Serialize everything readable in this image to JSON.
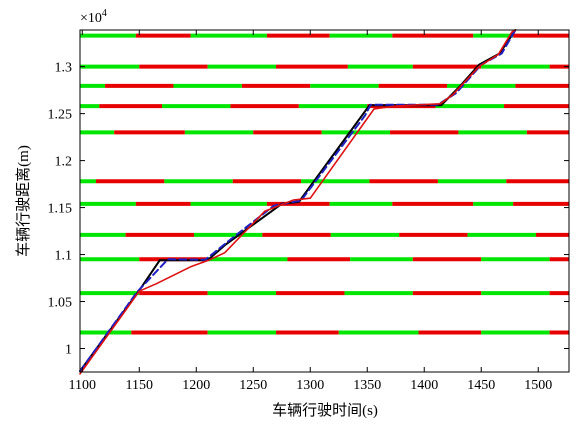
{
  "chart_data": {
    "type": "line",
    "title": "",
    "xlabel": "车辆行驶时间(s)",
    "ylabel": "车辆行驶距离(m)",
    "y_multiplier": "×10",
    "y_multiplier_exp": "4",
    "xlim": [
      1098,
      1527
    ],
    "ylim": [
      9750,
      13390
    ],
    "x_ticks": [
      1100,
      1150,
      1200,
      1250,
      1300,
      1350,
      1400,
      1450,
      1500
    ],
    "x_tick_labels": [
      "1100",
      "1150",
      "1200",
      "1250",
      "1300",
      "1350",
      "1400",
      "1450",
      "1500"
    ],
    "y_ticks": [
      10000,
      10500,
      11000,
      11500,
      12000,
      12500,
      13000
    ],
    "y_tick_labels": [
      "1",
      "1.05",
      "1.1",
      "1.15",
      "1.2",
      "1.25",
      "1.3"
    ],
    "grid": false,
    "legend": "none",
    "colors": {
      "green_phase": "#00e600",
      "red_phase": "#e60000",
      "black_traj": "#000000",
      "blue_traj": "#1f1fbf",
      "red_traj": "#dd1111"
    },
    "signals": [
      {
        "y": 13330,
        "segments": [
          [
            1098,
            1147,
            "g"
          ],
          [
            1147,
            1195,
            "r"
          ],
          [
            1195,
            1262,
            "g"
          ],
          [
            1262,
            1317,
            "r"
          ],
          [
            1317,
            1372,
            "g"
          ],
          [
            1372,
            1443,
            "r"
          ],
          [
            1443,
            1478,
            "g"
          ],
          [
            1478,
            1532,
            "r"
          ],
          [
            1532,
            1527,
            "g"
          ]
        ]
      },
      {
        "y": 13000,
        "segments": [
          [
            1098,
            1150,
            "g"
          ],
          [
            1150,
            1210,
            "r"
          ],
          [
            1210,
            1270,
            "g"
          ],
          [
            1270,
            1333,
            "r"
          ],
          [
            1333,
            1390,
            "g"
          ],
          [
            1390,
            1450,
            "r"
          ],
          [
            1450,
            1510,
            "g"
          ],
          [
            1510,
            1527,
            "r"
          ]
        ]
      },
      {
        "y": 12795,
        "segments": [
          [
            1098,
            1120,
            "g"
          ],
          [
            1120,
            1180,
            "r"
          ],
          [
            1180,
            1240,
            "g"
          ],
          [
            1240,
            1300,
            "r"
          ],
          [
            1300,
            1360,
            "g"
          ],
          [
            1360,
            1420,
            "r"
          ],
          [
            1420,
            1480,
            "g"
          ],
          [
            1480,
            1527,
            "r"
          ]
        ]
      },
      {
        "y": 12580,
        "segments": [
          [
            1098,
            1115,
            "g"
          ],
          [
            1115,
            1170,
            "r"
          ],
          [
            1170,
            1230,
            "g"
          ],
          [
            1230,
            1290,
            "r"
          ],
          [
            1290,
            1350,
            "g"
          ],
          [
            1350,
            1410,
            "r"
          ],
          [
            1410,
            1470,
            "g"
          ],
          [
            1470,
            1527,
            "r"
          ]
        ]
      },
      {
        "y": 12300,
        "segments": [
          [
            1098,
            1128,
            "g"
          ],
          [
            1128,
            1190,
            "r"
          ],
          [
            1190,
            1250,
            "g"
          ],
          [
            1250,
            1310,
            "r"
          ],
          [
            1310,
            1370,
            "g"
          ],
          [
            1370,
            1430,
            "r"
          ],
          [
            1430,
            1490,
            "g"
          ],
          [
            1490,
            1527,
            "r"
          ]
        ]
      },
      {
        "y": 11780,
        "segments": [
          [
            1098,
            1112,
            "g"
          ],
          [
            1112,
            1172,
            "r"
          ],
          [
            1172,
            1232,
            "g"
          ],
          [
            1232,
            1292,
            "r"
          ],
          [
            1292,
            1352,
            "g"
          ],
          [
            1352,
            1412,
            "r"
          ],
          [
            1412,
            1472,
            "g"
          ],
          [
            1472,
            1527,
            "r"
          ]
        ]
      },
      {
        "y": 11540,
        "segments": [
          [
            1098,
            1147,
            "g"
          ],
          [
            1147,
            1195,
            "r"
          ],
          [
            1195,
            1262,
            "g"
          ],
          [
            1262,
            1317,
            "r"
          ],
          [
            1317,
            1372,
            "g"
          ],
          [
            1372,
            1443,
            "r"
          ],
          [
            1443,
            1478,
            "g"
          ],
          [
            1478,
            1527,
            "r"
          ]
        ]
      },
      {
        "y": 11210,
        "segments": [
          [
            1098,
            1138,
            "g"
          ],
          [
            1138,
            1198,
            "r"
          ],
          [
            1198,
            1258,
            "g"
          ],
          [
            1258,
            1318,
            "r"
          ],
          [
            1318,
            1378,
            "g"
          ],
          [
            1378,
            1438,
            "r"
          ],
          [
            1438,
            1498,
            "g"
          ],
          [
            1498,
            1527,
            "r"
          ]
        ]
      },
      {
        "y": 10950,
        "segments": [
          [
            1098,
            1150,
            "g"
          ],
          [
            1150,
            1210,
            "r"
          ],
          [
            1210,
            1280,
            "g"
          ],
          [
            1280,
            1335,
            "r"
          ],
          [
            1335,
            1390,
            "g"
          ],
          [
            1390,
            1450,
            "r"
          ],
          [
            1450,
            1510,
            "g"
          ],
          [
            1510,
            1527,
            "r"
          ]
        ]
      },
      {
        "y": 10590,
        "segments": [
          [
            1098,
            1150,
            "g"
          ],
          [
            1150,
            1210,
            "r"
          ],
          [
            1210,
            1270,
            "g"
          ],
          [
            1270,
            1330,
            "r"
          ],
          [
            1330,
            1390,
            "g"
          ],
          [
            1390,
            1450,
            "r"
          ],
          [
            1450,
            1510,
            "g"
          ],
          [
            1510,
            1527,
            "r"
          ]
        ]
      },
      {
        "y": 10170,
        "segments": [
          [
            1098,
            1143,
            "g"
          ],
          [
            1143,
            1210,
            "r"
          ],
          [
            1210,
            1270,
            "g"
          ],
          [
            1270,
            1325,
            "r"
          ],
          [
            1325,
            1395,
            "g"
          ],
          [
            1395,
            1450,
            "r"
          ],
          [
            1450,
            1510,
            "g"
          ],
          [
            1510,
            1527,
            "r"
          ]
        ]
      }
    ],
    "series": [
      {
        "style": "black-solid",
        "points": [
          [
            1098,
            9760
          ],
          [
            1150,
            10620
          ],
          [
            1168,
            10940
          ],
          [
            1210,
            10940
          ],
          [
            1225,
            11100
          ],
          [
            1275,
            11540
          ],
          [
            1290,
            11560
          ],
          [
            1352,
            12590
          ],
          [
            1415,
            12590
          ],
          [
            1432,
            12800
          ],
          [
            1448,
            13020
          ],
          [
            1466,
            13140
          ],
          [
            1480,
            13390
          ]
        ]
      },
      {
        "style": "blue-dashed",
        "points": [
          [
            1098,
            9760
          ],
          [
            1148,
            10600
          ],
          [
            1175,
            10950
          ],
          [
            1208,
            10945
          ],
          [
            1230,
            11160
          ],
          [
            1268,
            11520
          ],
          [
            1292,
            11575
          ],
          [
            1348,
            12480
          ],
          [
            1353,
            12595
          ],
          [
            1412,
            12595
          ],
          [
            1428,
            12720
          ],
          [
            1450,
            13020
          ],
          [
            1468,
            13140
          ],
          [
            1480,
            13390
          ]
        ]
      },
      {
        "style": "red-solid",
        "points": [
          [
            1098,
            9730
          ],
          [
            1150,
            10610
          ],
          [
            1165,
            10690
          ],
          [
            1195,
            10870
          ],
          [
            1212,
            10945
          ],
          [
            1225,
            11020
          ],
          [
            1260,
            11460
          ],
          [
            1285,
            11580
          ],
          [
            1300,
            11600
          ],
          [
            1356,
            12550
          ],
          [
            1375,
            12580
          ],
          [
            1398,
            12595
          ],
          [
            1414,
            12605
          ],
          [
            1425,
            12700
          ],
          [
            1448,
            13000
          ],
          [
            1465,
            13130
          ],
          [
            1477,
            13370
          ],
          [
            1480,
            13390
          ]
        ]
      }
    ]
  }
}
